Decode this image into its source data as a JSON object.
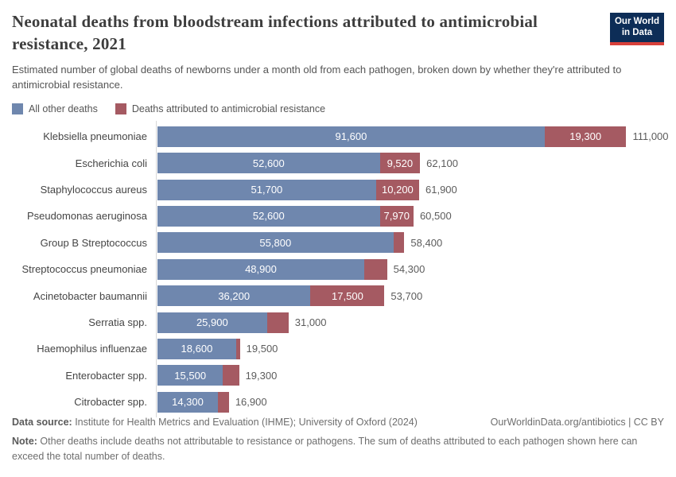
{
  "header": {
    "title": "Neonatal deaths from bloodstream infections attributed to antimicrobial resistance, 2021",
    "subtitle": "Estimated number of global deaths of newborns under a month old from each pathogen, broken down by whether they're attributed to antimicrobial resistance.",
    "logo": {
      "line1": "Our World",
      "line2": "in Data"
    }
  },
  "legend": [
    {
      "label": "All other deaths",
      "color": "#6f87ae"
    },
    {
      "label": "Deaths attributed to antimicrobial resistance",
      "color": "#a55a62"
    }
  ],
  "chart_data": {
    "type": "bar",
    "orientation": "horizontal",
    "stacked": true,
    "title": "Neonatal deaths from bloodstream infections attributed to antimicrobial resistance, 2021",
    "unit": "deaths",
    "xlim": [
      0,
      111000
    ],
    "grid": false,
    "legend_position": "top",
    "series_names": [
      "All other deaths",
      "Deaths attributed to antimicrobial resistance"
    ],
    "colors": {
      "other": "#6f87ae",
      "amr": "#a55a62"
    },
    "rows": [
      {
        "pathogen": "Klebsiella pneumoniae",
        "other": 91600,
        "amr": 19300,
        "total": 111000,
        "other_label": "91,600",
        "amr_label": "19,300",
        "total_label": "111,000"
      },
      {
        "pathogen": "Escherichia coli",
        "other": 52600,
        "amr": 9520,
        "total": 62100,
        "other_label": "52,600",
        "amr_label": "9,520",
        "total_label": "62,100"
      },
      {
        "pathogen": "Staphylococcus aureus",
        "other": 51700,
        "amr": 10200,
        "total": 61900,
        "other_label": "51,700",
        "amr_label": "10,200",
        "total_label": "61,900"
      },
      {
        "pathogen": "Pseudomonas aeruginosa",
        "other": 52600,
        "amr": 7970,
        "total": 60500,
        "other_label": "52,600",
        "amr_label": "7,970",
        "total_label": "60,500"
      },
      {
        "pathogen": "Group B Streptococcus",
        "other": 55800,
        "amr": 2600,
        "total": 58400,
        "other_label": "55,800",
        "amr_label": null,
        "total_label": "58,400"
      },
      {
        "pathogen": "Streptococcus pneumoniae",
        "other": 48900,
        "amr": 5400,
        "total": 54300,
        "other_label": "48,900",
        "amr_label": null,
        "total_label": "54,300"
      },
      {
        "pathogen": "Acinetobacter baumannii",
        "other": 36200,
        "amr": 17500,
        "total": 53700,
        "other_label": "36,200",
        "amr_label": "17,500",
        "total_label": "53,700"
      },
      {
        "pathogen": "Serratia spp.",
        "other": 25900,
        "amr": 5100,
        "total": 31000,
        "other_label": "25,900",
        "amr_label": null,
        "total_label": "31,000"
      },
      {
        "pathogen": "Haemophilus influenzae",
        "other": 18600,
        "amr": 900,
        "total": 19500,
        "other_label": "18,600",
        "amr_label": null,
        "total_label": "19,500"
      },
      {
        "pathogen": "Enterobacter spp.",
        "other": 15500,
        "amr": 3800,
        "total": 19300,
        "other_label": "15,500",
        "amr_label": null,
        "total_label": "19,300"
      },
      {
        "pathogen": "Citrobacter spp.",
        "other": 14300,
        "amr": 2600,
        "total": 16900,
        "other_label": "14,300",
        "amr_label": null,
        "total_label": "16,900"
      }
    ]
  },
  "footer": {
    "source_prefix": "Data source:",
    "source_text": " Institute for Health Metrics and Evaluation (IHME); University of Oxford (2024)",
    "link": "OurWorldinData.org/antibiotics | CC BY",
    "note_prefix": "Note:",
    "note_text": " Other deaths include deaths not attributable to resistance or pathogens. The sum of deaths attributed to each pathogen shown here can exceed the total number of deaths."
  }
}
